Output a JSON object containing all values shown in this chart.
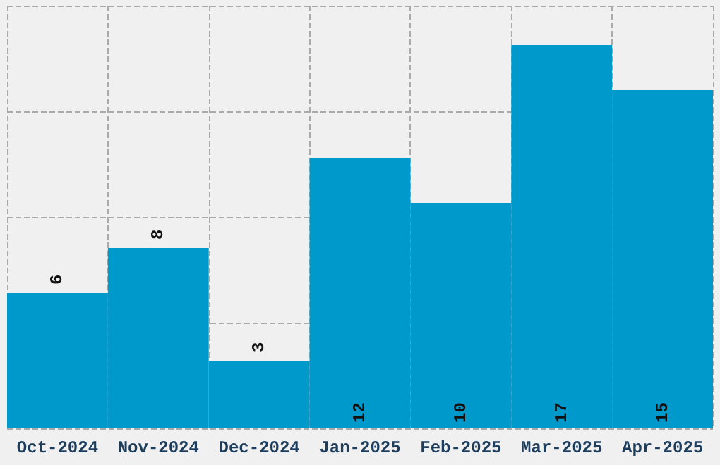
{
  "chart_data": {
    "type": "bar",
    "categories": [
      "Oct-2024",
      "Nov-2024",
      "Dec-2024",
      "Jan-2025",
      "Feb-2025",
      "Mar-2025",
      "Apr-2025"
    ],
    "values": [
      6,
      8,
      3,
      12,
      10,
      17,
      15
    ],
    "color": "#0099cc",
    "ylim": [
      0,
      18.75
    ],
    "yticks": [
      {
        "value": 0,
        "label": null
      },
      {
        "value": 4.6875,
        "label": null
      },
      {
        "value": 9.375,
        "label": null
      },
      {
        "value": 14.0625,
        "label": null
      },
      {
        "value": 18.75,
        "label": null
      }
    ],
    "grid": true,
    "data_labels": true,
    "tick_labels": "x"
  }
}
